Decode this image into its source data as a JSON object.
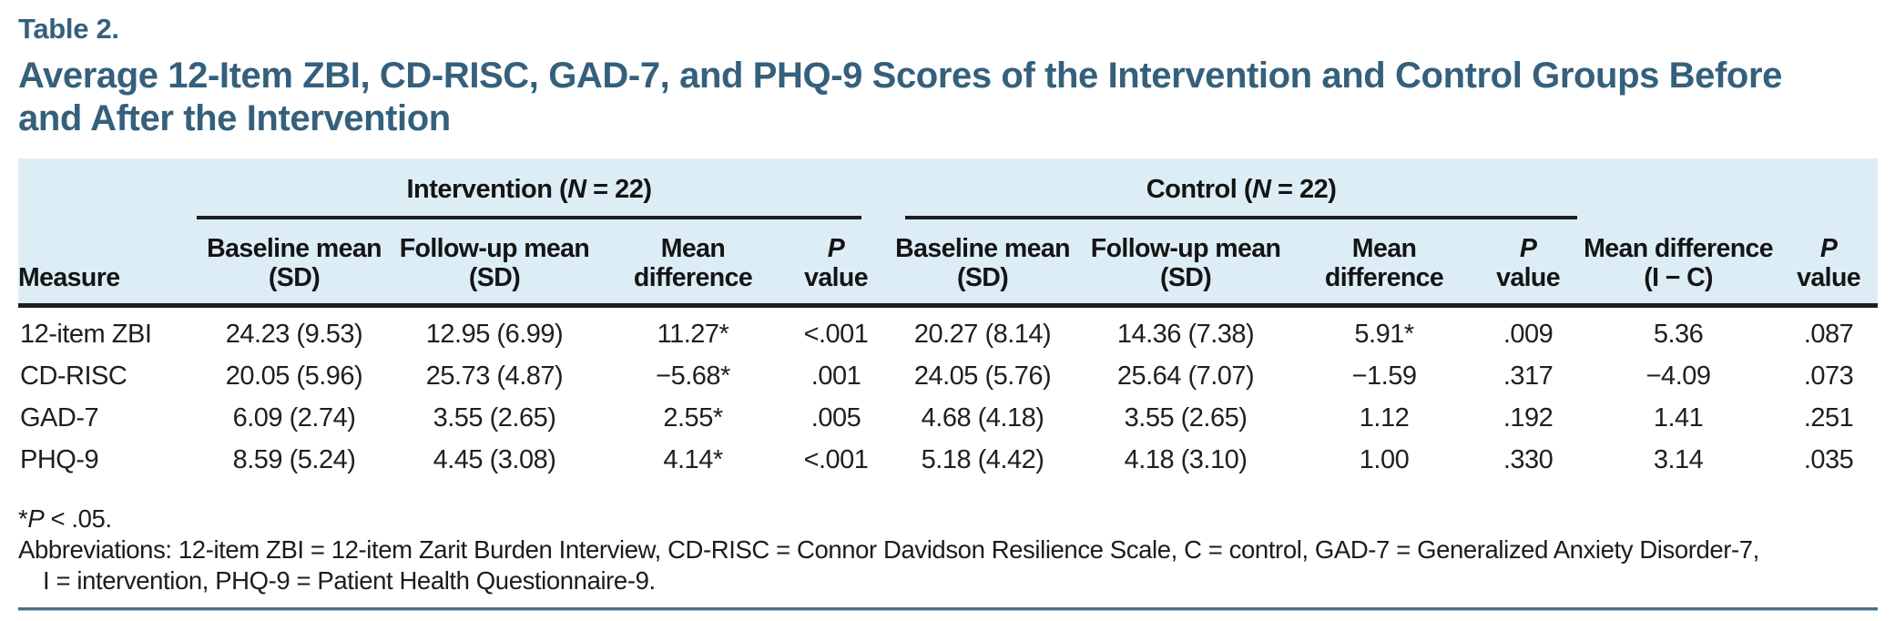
{
  "colors": {
    "accent_title": "#34607c",
    "header_bg": "#ddedf6",
    "rule_black": "#1f1f1f",
    "bottom_rule": "#4b7088"
  },
  "header": {
    "table_label": "Table 2.",
    "title": "Average 12-Item ZBI, CD-RISC, GAD-7, and PHQ-9 Scores of the Intervention and Control Groups Before and After the Intervention"
  },
  "table": {
    "measure_header": "Measure",
    "groups": [
      {
        "prefix": "Intervention (",
        "n": "N",
        "suffix": " = 22)"
      },
      {
        "prefix": "Control (",
        "n": "N",
        "suffix": " = 22)"
      }
    ],
    "columns": {
      "baseline_l1": "Baseline mean",
      "baseline_l2": "(SD)",
      "followup_l1": "Follow-up mean",
      "followup_l2": "(SD)",
      "meandiff_l1": "Mean",
      "meandiff_l2": "difference",
      "p_italic": "P",
      "p_l2": "value",
      "meandiff_ic_l1": "Mean difference",
      "meandiff_ic_l2": "(I − C)"
    },
    "rows": [
      {
        "measure": "12-item ZBI",
        "i_baseline": "24.23 (9.53)",
        "i_followup": "12.95 (6.99)",
        "i_meandiff": "11.27*",
        "i_p": "<.001",
        "c_baseline": "20.27 (8.14)",
        "c_followup": "14.36 (7.38)",
        "c_meandiff": "5.91*",
        "c_p": ".009",
        "meandiff_ic": "5.36",
        "p_ic": ".087"
      },
      {
        "measure": "CD-RISC",
        "i_baseline": "20.05 (5.96)",
        "i_followup": "25.73 (4.87)",
        "i_meandiff": "−5.68*",
        "i_p": ".001",
        "c_baseline": "24.05 (5.76)",
        "c_followup": "25.64 (7.07)",
        "c_meandiff": "−1.59",
        "c_p": ".317",
        "meandiff_ic": "−4.09",
        "p_ic": ".073"
      },
      {
        "measure": "GAD-7",
        "i_baseline": "6.09 (2.74)",
        "i_followup": "3.55 (2.65)",
        "i_meandiff": "2.55*",
        "i_p": ".005",
        "c_baseline": "4.68 (4.18)",
        "c_followup": "3.55 (2.65)",
        "c_meandiff": "1.12",
        "c_p": ".192",
        "meandiff_ic": "1.41",
        "p_ic": ".251"
      },
      {
        "measure": "PHQ-9",
        "i_baseline": "8.59 (5.24)",
        "i_followup": "4.45 (3.08)",
        "i_meandiff": "4.14*",
        "i_p": "<.001",
        "c_baseline": "5.18 (4.42)",
        "c_followup": "4.18 (3.10)",
        "c_meandiff": "1.00",
        "c_p": ".330",
        "meandiff_ic": "3.14",
        "p_ic": ".035"
      }
    ]
  },
  "footnotes": {
    "sig_star": "*",
    "sig_p": "P",
    "sig_rest": " < .05.",
    "abbreviations_line1": "Abbreviations: 12-item ZBI = 12-item Zarit Burden Interview, CD-RISC = Connor Davidson Resilience Scale, C = control, GAD-7 = Generalized Anxiety Disorder-7,",
    "abbreviations_line2": "I = intervention, PHQ-9 = Patient Health Questionnaire-9."
  }
}
